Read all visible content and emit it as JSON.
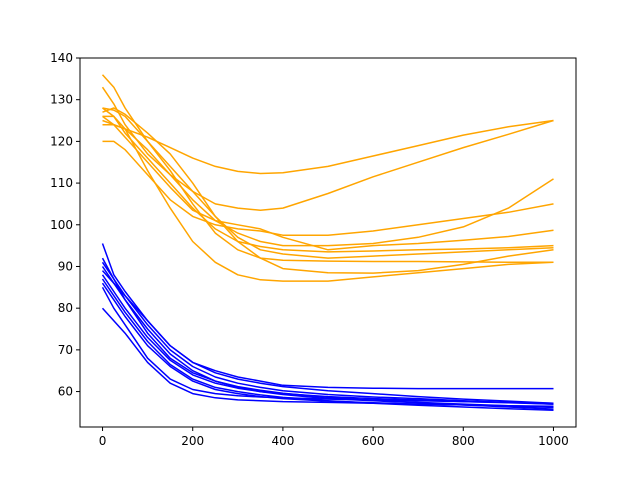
{
  "chart_data": {
    "type": "line",
    "title": "",
    "xlabel": "",
    "ylabel": "",
    "xlim": [
      -50,
      1050
    ],
    "ylim": [
      51.5,
      140
    ],
    "xticks": [
      0,
      200,
      400,
      600,
      800,
      1000
    ],
    "yticks": [
      60,
      70,
      80,
      90,
      100,
      110,
      120,
      130,
      140
    ],
    "grid": false,
    "legend": "none",
    "colors": {
      "orange": "#ffa500",
      "blue": "#0000ff",
      "axis": "#000000"
    },
    "x": [
      0,
      25,
      50,
      100,
      150,
      200,
      250,
      300,
      350,
      400,
      500,
      600,
      700,
      800,
      900,
      1000
    ],
    "series": [
      {
        "color": "#ffa500",
        "values": [
          136,
          133,
          128,
          120,
          114,
          108,
          102,
          97,
          94,
          93,
          92,
          92.5,
          93,
          93.5,
          94,
          94.5
        ]
      },
      {
        "color": "#ffa500",
        "values": [
          133,
          129,
          124,
          117,
          112,
          108,
          105,
          104,
          103.5,
          104,
          107.5,
          111.5,
          115,
          118.5,
          121.7,
          125
        ]
      },
      {
        "color": "#ffa500",
        "values": [
          128,
          127.5,
          126,
          120,
          113,
          105,
          98,
          94,
          92,
          91.5,
          91.3,
          91.2,
          91.2,
          91.1,
          91,
          91
        ]
      },
      {
        "color": "#ffa500",
        "values": [
          127,
          128,
          126.5,
          122,
          117,
          110,
          102,
          96,
          92,
          89.5,
          88.5,
          88.4,
          89,
          90.5,
          92.5,
          94
        ]
      },
      {
        "color": "#ffa500",
        "values": [
          126,
          126,
          123,
          113,
          104,
          96,
          91,
          88,
          86.8,
          86.5,
          86.5,
          87.5,
          88.5,
          89.5,
          90.5,
          91
        ]
      },
      {
        "color": "#ffa500",
        "values": [
          125,
          124,
          123,
          121,
          118.5,
          116,
          114,
          112.8,
          112.3,
          112.5,
          114,
          116.5,
          119,
          121.5,
          123.5,
          125
        ]
      },
      {
        "color": "#ffa500",
        "values": [
          124,
          124,
          123,
          118,
          112,
          106,
          101,
          98,
          96,
          95,
          95,
          95.5,
          97,
          99.5,
          104,
          111
        ]
      },
      {
        "color": "#ffa500",
        "values": [
          120,
          120,
          118,
          112,
          106,
          102,
          100,
          99,
          98.5,
          97.5,
          97.5,
          98.5,
          100,
          101.5,
          103,
          105
        ]
      },
      {
        "color": "#ffa500",
        "values": [
          126,
          124,
          121,
          115,
          109,
          103.5,
          101,
          100,
          99,
          97,
          94,
          95,
          95.5,
          96.3,
          97.2,
          98.7
        ]
      },
      {
        "color": "#ffa500",
        "values": [
          128,
          126,
          122,
          116,
          110,
          104,
          99,
          96,
          94.8,
          94,
          93.5,
          93.7,
          94,
          94.2,
          94.5,
          95
        ]
      },
      {
        "color": "#0000ff",
        "values": [
          95.5,
          88,
          84,
          77,
          71,
          67,
          65,
          63.5,
          62.5,
          61.5,
          61,
          60.8,
          60.7,
          60.7,
          60.7,
          60.7
        ]
      },
      {
        "color": "#0000ff",
        "values": [
          92,
          87,
          83,
          76,
          70,
          66,
          63.5,
          62,
          61,
          60.2,
          59.3,
          58.7,
          58.3,
          57.8,
          57.4,
          57
        ]
      },
      {
        "color": "#0000ff",
        "values": [
          90,
          86,
          82,
          75,
          69,
          65,
          62.5,
          61,
          60,
          59.3,
          58.3,
          57.8,
          57.3,
          56.8,
          56.3,
          55.8
        ]
      },
      {
        "color": "#0000ff",
        "values": [
          88,
          84,
          80,
          73,
          67.5,
          64,
          62,
          60.8,
          60,
          59.5,
          58.8,
          58.3,
          58,
          57.6,
          57.3,
          57
        ]
      },
      {
        "color": "#0000ff",
        "values": [
          86,
          82,
          78,
          71,
          66,
          62.5,
          60.5,
          59.5,
          58.8,
          58.3,
          57.7,
          57.3,
          57,
          56.8,
          56.5,
          56.2
        ]
      },
      {
        "color": "#0000ff",
        "values": [
          80,
          77,
          74,
          67,
          62,
          59.5,
          58.5,
          58,
          57.8,
          57.6,
          57.4,
          57.2,
          57,
          56.8,
          56.6,
          56.5
        ]
      },
      {
        "color": "#0000ff",
        "values": [
          85,
          80,
          76,
          68,
          63,
          60.5,
          59.5,
          59,
          58.7,
          58.5,
          58.2,
          58,
          57.8,
          57.6,
          57.4,
          57.2
        ]
      },
      {
        "color": "#0000ff",
        "values": [
          89,
          86,
          83,
          77,
          71,
          67,
          64.5,
          63,
          62,
          61.2,
          60.2,
          59.5,
          58.8,
          58.2,
          57.7,
          57.2
        ]
      },
      {
        "color": "#0000ff",
        "values": [
          91,
          87,
          82,
          74,
          68,
          64.5,
          62.5,
          61.2,
          60.3,
          59.6,
          58.6,
          57.9,
          57.4,
          57,
          56.6,
          56.3
        ]
      },
      {
        "color": "#0000ff",
        "values": [
          87,
          83,
          79,
          72,
          66.5,
          63,
          61,
          60,
          59.2,
          58.6,
          57.8,
          57.2,
          56.7,
          56.3,
          55.9,
          55.5
        ]
      }
    ]
  }
}
